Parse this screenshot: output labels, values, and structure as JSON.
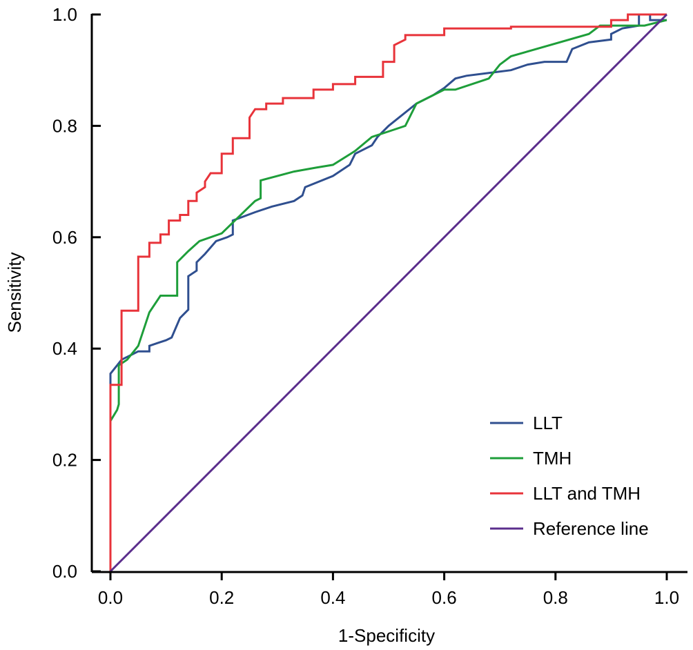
{
  "chart_data": {
    "type": "line",
    "title": "",
    "xlabel": "1-Specificity",
    "ylabel": "Sensitivity",
    "xlim": [
      0,
      1
    ],
    "ylim": [
      0,
      1
    ],
    "x_ticks": [
      "0.0",
      "0.2",
      "0.4",
      "0.6",
      "0.8",
      "1.0"
    ],
    "y_ticks": [
      "0.0",
      "0.2",
      "0.4",
      "0.6",
      "0.8",
      "1.0"
    ],
    "grid": false,
    "legend_position": "bottom-right",
    "series": [
      {
        "name": "LLT",
        "color": "#2f4f8f",
        "points": [
          [
            0,
            0
          ],
          [
            0,
            0.355
          ],
          [
            0.012,
            0.37
          ],
          [
            0.02,
            0.38
          ],
          [
            0.04,
            0.39
          ],
          [
            0.05,
            0.395
          ],
          [
            0.07,
            0.395
          ],
          [
            0.07,
            0.405
          ],
          [
            0.085,
            0.41
          ],
          [
            0.1,
            0.415
          ],
          [
            0.11,
            0.42
          ],
          [
            0.125,
            0.455
          ],
          [
            0.14,
            0.47
          ],
          [
            0.14,
            0.53
          ],
          [
            0.155,
            0.54
          ],
          [
            0.155,
            0.555
          ],
          [
            0.17,
            0.57
          ],
          [
            0.19,
            0.593
          ],
          [
            0.21,
            0.6
          ],
          [
            0.22,
            0.605
          ],
          [
            0.22,
            0.63
          ],
          [
            0.26,
            0.645
          ],
          [
            0.29,
            0.655
          ],
          [
            0.33,
            0.665
          ],
          [
            0.345,
            0.675
          ],
          [
            0.35,
            0.69
          ],
          [
            0.4,
            0.71
          ],
          [
            0.43,
            0.73
          ],
          [
            0.44,
            0.75
          ],
          [
            0.45,
            0.755
          ],
          [
            0.47,
            0.765
          ],
          [
            0.48,
            0.78
          ],
          [
            0.5,
            0.8
          ],
          [
            0.55,
            0.84
          ],
          [
            0.58,
            0.855
          ],
          [
            0.6,
            0.868
          ],
          [
            0.62,
            0.885
          ],
          [
            0.64,
            0.89
          ],
          [
            0.68,
            0.895
          ],
          [
            0.72,
            0.9
          ],
          [
            0.75,
            0.91
          ],
          [
            0.78,
            0.915
          ],
          [
            0.82,
            0.915
          ],
          [
            0.83,
            0.938
          ],
          [
            0.86,
            0.95
          ],
          [
            0.9,
            0.955
          ],
          [
            0.9,
            0.965
          ],
          [
            0.92,
            0.975
          ],
          [
            0.95,
            0.98
          ],
          [
            0.95,
            1.0
          ],
          [
            0.97,
            1.0
          ],
          [
            0.97,
            0.99
          ],
          [
            1,
            0.99
          ]
        ]
      },
      {
        "name": "TMH",
        "color": "#1e9e3a",
        "points": [
          [
            0,
            0
          ],
          [
            0,
            0.27
          ],
          [
            0.012,
            0.29
          ],
          [
            0.015,
            0.3
          ],
          [
            0.015,
            0.37
          ],
          [
            0.03,
            0.38
          ],
          [
            0.05,
            0.405
          ],
          [
            0.07,
            0.465
          ],
          [
            0.09,
            0.495
          ],
          [
            0.12,
            0.495
          ],
          [
            0.12,
            0.555
          ],
          [
            0.14,
            0.575
          ],
          [
            0.16,
            0.593
          ],
          [
            0.2,
            0.607
          ],
          [
            0.23,
            0.636
          ],
          [
            0.26,
            0.665
          ],
          [
            0.27,
            0.67
          ],
          [
            0.27,
            0.702
          ],
          [
            0.33,
            0.718
          ],
          [
            0.37,
            0.725
          ],
          [
            0.4,
            0.73
          ],
          [
            0.44,
            0.755
          ],
          [
            0.47,
            0.78
          ],
          [
            0.5,
            0.79
          ],
          [
            0.53,
            0.8
          ],
          [
            0.55,
            0.84
          ],
          [
            0.6,
            0.865
          ],
          [
            0.62,
            0.865
          ],
          [
            0.68,
            0.885
          ],
          [
            0.7,
            0.91
          ],
          [
            0.72,
            0.925
          ],
          [
            0.86,
            0.965
          ],
          [
            0.88,
            0.98
          ],
          [
            0.96,
            0.98
          ],
          [
            1,
            0.99
          ]
        ]
      },
      {
        "name": "LLT and TMH",
        "color": "#e8333a",
        "points": [
          [
            0,
            0
          ],
          [
            0,
            0.335
          ],
          [
            0.02,
            0.335
          ],
          [
            0.02,
            0.468
          ],
          [
            0.05,
            0.468
          ],
          [
            0.05,
            0.565
          ],
          [
            0.07,
            0.565
          ],
          [
            0.07,
            0.59
          ],
          [
            0.09,
            0.59
          ],
          [
            0.09,
            0.605
          ],
          [
            0.105,
            0.605
          ],
          [
            0.105,
            0.63
          ],
          [
            0.125,
            0.63
          ],
          [
            0.125,
            0.64
          ],
          [
            0.14,
            0.64
          ],
          [
            0.14,
            0.665
          ],
          [
            0.155,
            0.665
          ],
          [
            0.155,
            0.68
          ],
          [
            0.17,
            0.69
          ],
          [
            0.17,
            0.7
          ],
          [
            0.18,
            0.715
          ],
          [
            0.2,
            0.715
          ],
          [
            0.2,
            0.75
          ],
          [
            0.22,
            0.75
          ],
          [
            0.22,
            0.778
          ],
          [
            0.25,
            0.778
          ],
          [
            0.25,
            0.815
          ],
          [
            0.26,
            0.83
          ],
          [
            0.28,
            0.83
          ],
          [
            0.28,
            0.84
          ],
          [
            0.31,
            0.84
          ],
          [
            0.31,
            0.85
          ],
          [
            0.365,
            0.85
          ],
          [
            0.365,
            0.865
          ],
          [
            0.4,
            0.865
          ],
          [
            0.4,
            0.875
          ],
          [
            0.44,
            0.875
          ],
          [
            0.44,
            0.888
          ],
          [
            0.49,
            0.888
          ],
          [
            0.49,
            0.915
          ],
          [
            0.51,
            0.915
          ],
          [
            0.51,
            0.945
          ],
          [
            0.53,
            0.955
          ],
          [
            0.53,
            0.963
          ],
          [
            0.6,
            0.963
          ],
          [
            0.6,
            0.975
          ],
          [
            0.72,
            0.975
          ],
          [
            0.72,
            0.978
          ],
          [
            0.9,
            0.978
          ],
          [
            0.9,
            0.99
          ],
          [
            0.93,
            0.99
          ],
          [
            0.93,
            1.0
          ],
          [
            1,
            1.0
          ]
        ]
      },
      {
        "name": "Reference line",
        "color": "#5b2e8c",
        "points": [
          [
            0,
            0
          ],
          [
            1,
            1
          ]
        ]
      }
    ]
  }
}
